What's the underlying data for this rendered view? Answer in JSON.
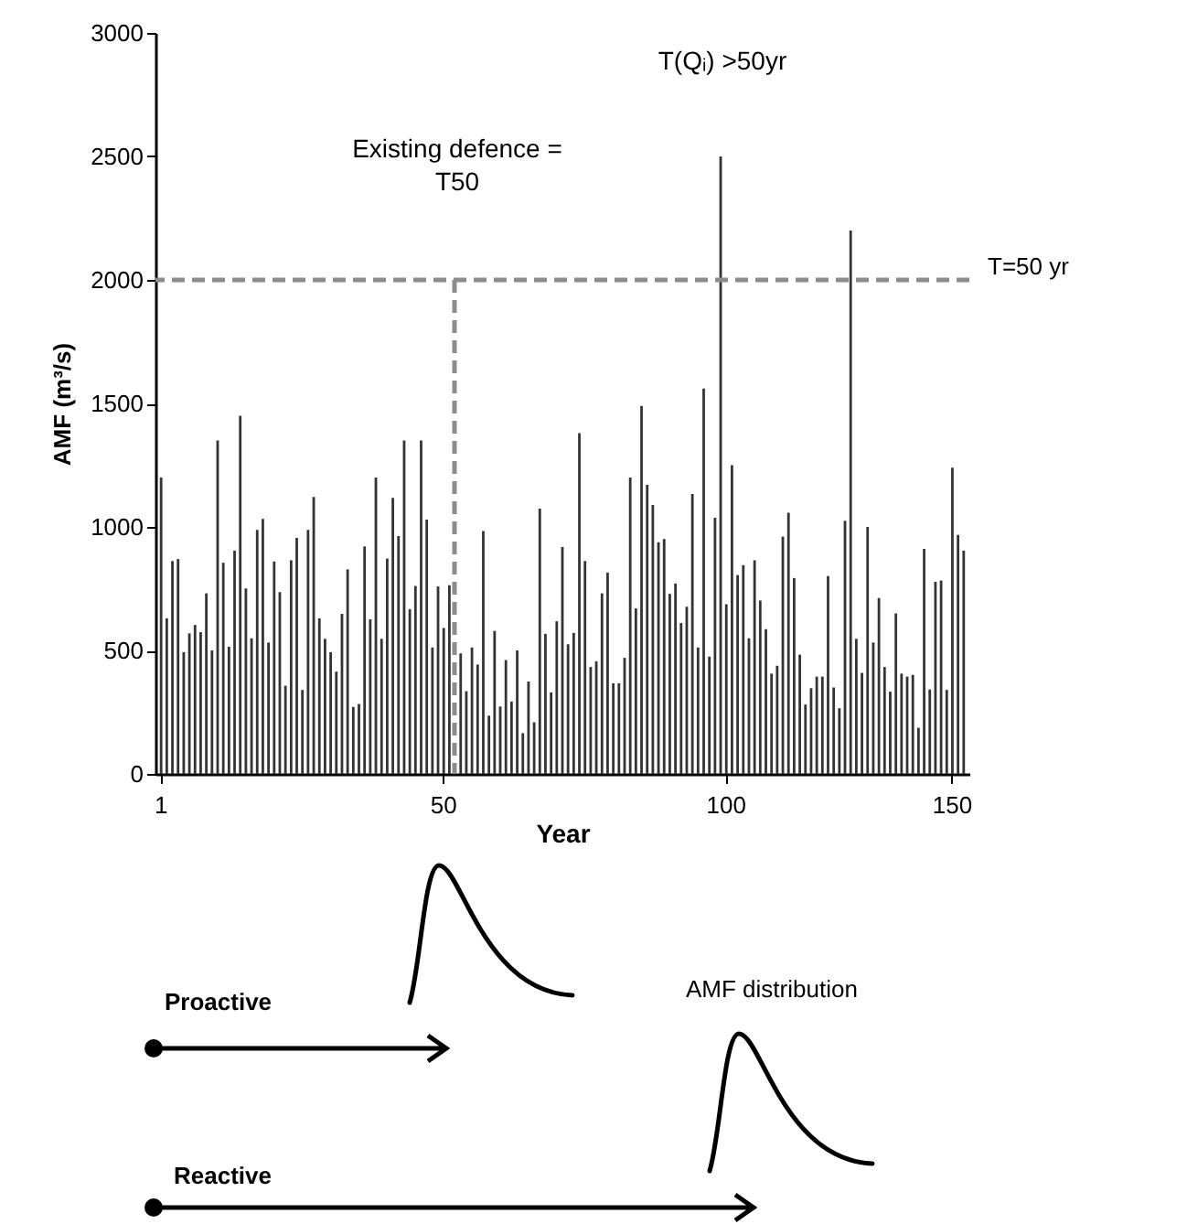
{
  "chart_data": {
    "type": "bar",
    "xlabel": "Year",
    "ylabel": "AMF (m³/s)",
    "color": "#333333",
    "categories": [
      "1",
      null,
      null,
      null,
      null,
      null,
      null,
      null,
      null,
      null,
      null,
      null,
      null,
      null,
      null,
      null,
      null,
      null,
      null,
      null,
      null,
      null,
      null,
      null,
      null,
      null,
      null,
      null,
      null,
      null,
      null,
      null,
      null,
      null,
      null,
      null,
      null,
      null,
      null,
      null,
      null,
      null,
      null,
      null,
      null,
      null,
      null,
      null,
      null,
      null,
      "50",
      null,
      null,
      null,
      null,
      null,
      null,
      null,
      null,
      null,
      null,
      null,
      null,
      null,
      null,
      null,
      null,
      null,
      null,
      null,
      null,
      null,
      null,
      null,
      null,
      null,
      null,
      null,
      null,
      null,
      null,
      null,
      null,
      null,
      null,
      null,
      null,
      null,
      null,
      null,
      null,
      null,
      null,
      null,
      null,
      null,
      null,
      null,
      null,
      null,
      "100",
      null,
      null,
      null,
      null,
      null,
      null,
      null,
      null,
      null,
      null,
      null,
      null,
      null,
      null,
      null,
      null,
      null,
      null,
      null,
      null,
      null,
      null,
      null,
      null,
      null,
      null,
      null,
      null,
      null,
      null,
      null,
      null,
      null,
      null,
      null,
      null,
      null,
      null,
      null,
      "150",
      null,
      null
    ],
    "values": [
      1200,
      630,
      862,
      870,
      493,
      569,
      603,
      574,
      731,
      500,
      1350,
      855,
      515,
      904,
      1450,
      751,
      549,
      988,
      1032,
      532,
      860,
      736,
      357,
      865,
      956,
      340,
      988,
      1121,
      630,
      547,
      493,
      414,
      648,
      828,
      271,
      283,
      921,
      626,
      1200,
      547,
      872,
      1118,
      963,
      1350,
      667,
      761,
      1350,
      1030,
      512,
      759,
      591,
      764,
      null,
      488,
      335,
      512,
      443,
      983,
      236,
      579,
      273,
      461,
      293,
      500,
      165,
      374,
      209,
      1074,
      567,
      330,
      618,
      919,
      525,
      571,
      1380,
      862,
      433,
      456,
      731,
      815,
      367,
      367,
      470,
      1200,
      670,
      1490,
      1170,
      1089,
      938,
      951,
      729,
      771,
      611,
      677,
      1133,
      512,
      1560,
      475,
      1037,
      2500,
      687,
      1250,
      805,
      845,
      549,
      865,
      702,
      586,
      406,
      438,
      961,
      1057,
      793,
      483,
      281,
      347,
      394,
      394,
      801,
      350,
      266,
      1025,
      2200,
      547,
      409,
      1000,
      532,
      712,
      433,
      333,
      650,
      406,
      394,
      401,
      187,
      911,
      342,
      778,
      783,
      340,
      1240,
      968,
      904
    ],
    "ylim": [
      0,
      3000
    ],
    "yticks": [
      0,
      500,
      1000,
      1500,
      2000,
      2500,
      3000
    ],
    "ref_lines": [
      {
        "axis": "y",
        "value": 2000,
        "color": "#8c8c8c",
        "line_style": "dashed"
      }
    ],
    "annotations": [
      "Existing defence = T50",
      "T(Qᵢ) >50yr",
      "T=50 yr",
      "Proactive",
      "AMF distribution",
      "Reactive"
    ]
  }
}
